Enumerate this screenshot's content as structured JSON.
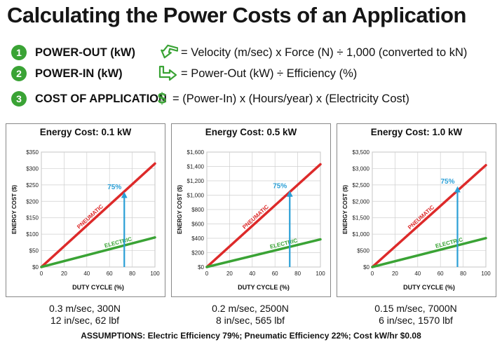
{
  "title": "Calculating the Power Costs of an Application",
  "formulas": [
    {
      "num": "1",
      "term": "POWER-OUT (kW)",
      "icon": "arrow-in-icon",
      "formula": "= Velocity (m/sec) x Force (N) ÷ 1,000 (converted to kN)"
    },
    {
      "num": "2",
      "term": "POWER-IN (kW)",
      "icon": "arrow-out-icon",
      "formula": "= Power-Out (kW) ÷ Efficiency (%)"
    },
    {
      "num": "3",
      "term": "COST OF APPLICATION",
      "icon": "dollar-icon",
      "symbol": "$",
      "formula": "= (Power-In) x (Hours/year) x (Electricity Cost)"
    }
  ],
  "colors": {
    "pneumatic": "#dd2a2a",
    "electric": "#3aa335",
    "marker": "#2a9fd6",
    "badge": "#3aa335"
  },
  "chart_data": [
    {
      "type": "line",
      "title": "Energy Cost: 0.1 kW",
      "xlabel": "DUTY CYCLE (%)",
      "ylabel": "ENERGY COST ($)",
      "xlim": [
        0,
        100
      ],
      "ylim": [
        0,
        350
      ],
      "xticks": [
        0,
        20,
        40,
        60,
        80,
        100
      ],
      "yticks": [
        0,
        50,
        100,
        150,
        200,
        250,
        300,
        350
      ],
      "yticklabels": [
        "$0",
        "$50",
        "$100",
        "$150",
        "$200",
        "$250",
        "$300",
        "$350"
      ],
      "series": [
        {
          "name": "PNEUMATIC",
          "x": [
            0,
            100
          ],
          "values": [
            0,
            315
          ]
        },
        {
          "name": "ELECTRIC",
          "x": [
            0,
            100
          ],
          "values": [
            0,
            90
          ]
        }
      ],
      "marker": {
        "label": "75%",
        "x": 73,
        "y": 228
      },
      "grid": true,
      "speed": [
        "0.3 m/sec, 300N",
        "12 in/sec, 62 lbf"
      ]
    },
    {
      "type": "line",
      "title": "Energy Cost: 0.5 kW",
      "xlabel": "DUTY CYCLE (%)",
      "ylabel": "ENERGY COST ($)",
      "xlim": [
        0,
        100
      ],
      "ylim": [
        0,
        1600
      ],
      "xticks": [
        0,
        20,
        40,
        60,
        80,
        100
      ],
      "yticks": [
        0,
        200,
        400,
        600,
        800,
        1000,
        1200,
        1400,
        1600
      ],
      "yticklabels": [
        "$0",
        "$200",
        "$400",
        "$600",
        "$800",
        "$1,000",
        "$1,200",
        "$1,400",
        "$1,600"
      ],
      "series": [
        {
          "name": "PNEUMATIC",
          "x": [
            0,
            100
          ],
          "values": [
            0,
            1430
          ]
        },
        {
          "name": "ELECTRIC",
          "x": [
            0,
            100
          ],
          "values": [
            0,
            385
          ]
        }
      ],
      "marker": {
        "label": "75%",
        "x": 73,
        "y": 1060
      },
      "grid": true,
      "speed": [
        "0.2 m/sec, 2500N",
        "8 in/sec, 565 lbf"
      ]
    },
    {
      "type": "line",
      "title": "Energy Cost: 1.0 kW",
      "xlabel": "DUTY CYCLE (%)",
      "ylabel": "ENERGY COST ($)",
      "xlim": [
        0,
        100
      ],
      "ylim": [
        0,
        3500
      ],
      "xticks": [
        0,
        20,
        40,
        60,
        80,
        100
      ],
      "yticks": [
        0,
        500,
        1000,
        1500,
        2000,
        2500,
        3000,
        3500
      ],
      "yticklabels": [
        "$0",
        "$500",
        "$1,000",
        "$1,500",
        "$2,000",
        "$2,500",
        "$3,000",
        "$3,500"
      ],
      "series": [
        {
          "name": "PNEUMATIC",
          "x": [
            0,
            100
          ],
          "values": [
            0,
            3100
          ]
        },
        {
          "name": "ELECTRIC",
          "x": [
            0,
            100
          ],
          "values": [
            0,
            880
          ]
        }
      ],
      "marker": {
        "label": "75%",
        "x": 75,
        "y": 2450
      },
      "grid": true,
      "speed": [
        "0.15 m/sec, 7000N",
        "6 in/sec, 1570 lbf"
      ]
    }
  ],
  "assumptions": "ASSUMPTIONS: Electric Efficiency 79%; Pneumatic Efficiency 22%; Cost kW/hr $0.08"
}
